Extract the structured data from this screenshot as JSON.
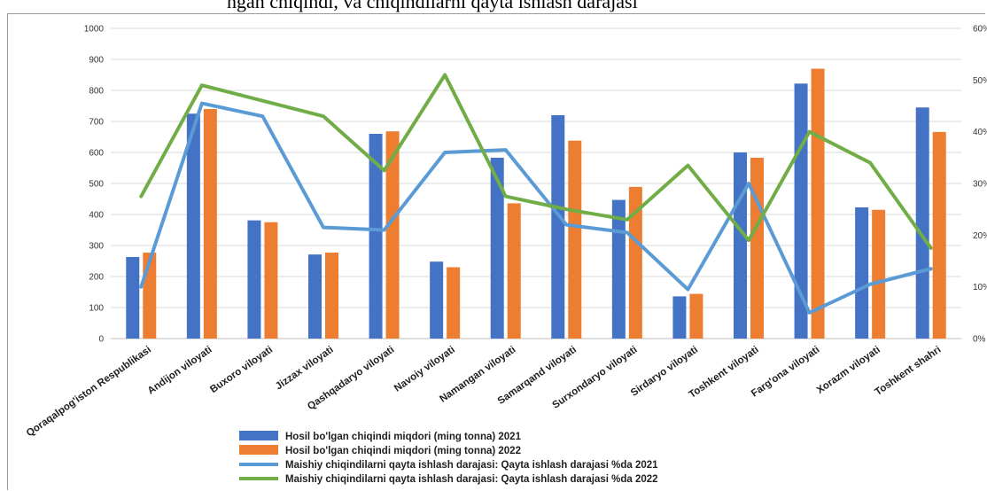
{
  "header": {
    "link_text": "",
    "text": "         ngan chiqindi, va chiqindilarni qayta ishlash darajasi"
  },
  "chart_data": {
    "type": "bar",
    "categories": [
      "Qoraqalpog'iston Respublikasi",
      "Andijon viloyati",
      "Buxoro viloyati",
      "Jizzax viloyati",
      "Qashqadaryo viloyati",
      "Navoiy viloyati",
      "Namangan viloyati",
      "Samarqand viloyati",
      "Surxondaryo viloyati",
      "Sirdaryo viloyati",
      "Toshkent viloyati",
      "Farg'ona viloyati",
      "Xorazm viloyati",
      "Toshkent shahri"
    ],
    "series": [
      {
        "name": "Hosil bo'lgan chiqindi miqdori (ming tonna) 2021",
        "type": "bar",
        "axis": "left",
        "color": "#4472c4",
        "values": [
          263,
          725,
          381,
          271,
          660,
          248,
          583,
          720,
          447,
          136,
          600,
          822,
          423,
          745
        ]
      },
      {
        "name": "Hosil bo'lgan chiqindi miqdori (ming tonna) 2022",
        "type": "bar",
        "axis": "left",
        "color": "#ed7d31",
        "values": [
          277,
          740,
          375,
          277,
          668,
          230,
          436,
          638,
          489,
          144,
          583,
          870,
          415,
          666
        ]
      },
      {
        "name": "Maishiy chiqindilarni qayta ishlash darajasi: Qayta ishlash darajasi %da 2021",
        "type": "line",
        "axis": "right",
        "color": "#5b9bd5",
        "values": [
          10,
          45.5,
          43,
          21.5,
          21,
          36,
          36.5,
          22,
          20.5,
          9.5,
          30,
          5,
          10.5,
          13.5
        ]
      },
      {
        "name": "Maishiy chiqindilarni qayta ishlash darajasi: Qayta ishlash darajasi %da 2022",
        "type": "line",
        "axis": "right",
        "color": "#70ad47",
        "values": [
          27.5,
          49,
          46,
          43,
          32.5,
          51,
          27.5,
          25,
          23,
          33.5,
          19,
          40,
          34,
          17.5
        ]
      }
    ],
    "y_left": {
      "lim": [
        0,
        1000
      ],
      "ticks": [
        "0",
        "100",
        "200",
        "300",
        "400",
        "500",
        "600",
        "700",
        "800",
        "900",
        "1000"
      ]
    },
    "y_right": {
      "lim": [
        0,
        60
      ],
      "ticks": [
        "0%",
        "10%",
        "20%",
        "30%",
        "40%",
        "50%",
        "60%"
      ]
    },
    "grid": true,
    "legend": "bottom"
  }
}
